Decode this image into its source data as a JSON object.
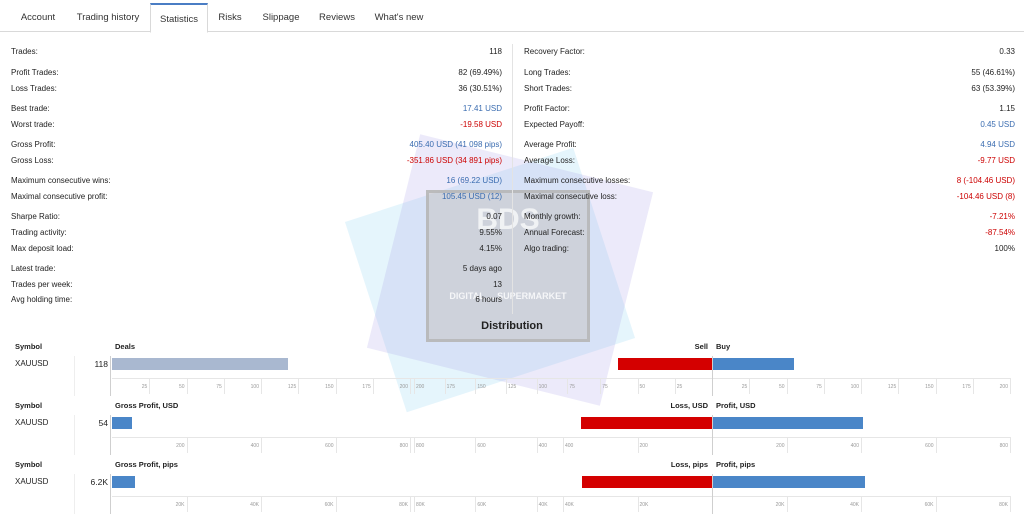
{
  "tabs": [
    {
      "label": "Account",
      "active": false
    },
    {
      "label": "Trading history",
      "active": false
    },
    {
      "label": "Statistics",
      "active": true
    },
    {
      "label": "Risks",
      "active": false
    },
    {
      "label": "Slippage",
      "active": false
    },
    {
      "label": "Reviews",
      "active": false
    },
    {
      "label": "What's new",
      "active": false
    }
  ],
  "left_stats": [
    {
      "label": "Trades:",
      "value": "118",
      "style": ""
    },
    {
      "label": "Profit Trades:",
      "value": "82 (69.49%)",
      "style": ""
    },
    {
      "label": "Loss Trades:",
      "value": "36 (30.51%)",
      "style": ""
    },
    {
      "label": "Best trade:",
      "value": "17.41 USD",
      "style": "blue"
    },
    {
      "label": "Worst trade:",
      "value": "-19.58 USD",
      "style": "red"
    },
    {
      "label": "Gross Profit:",
      "value": "405.40 USD (41 098 pips)",
      "style": "blue"
    },
    {
      "label": "Gross Loss:",
      "value": "-351.86 USD (34 891 pips)",
      "style": "red"
    },
    {
      "label": "Maximum consecutive wins:",
      "value": "16 (69.22 USD)",
      "style": "blue"
    },
    {
      "label": "Maximal consecutive profit:",
      "value": "105.45 USD (12)",
      "style": "blue"
    },
    {
      "label": "Sharpe Ratio:",
      "value": "0.07",
      "style": ""
    },
    {
      "label": "Trading activity:",
      "value": "9.55%",
      "style": ""
    },
    {
      "label": "Max deposit load:",
      "value": "4.15%",
      "style": ""
    },
    {
      "label": "Latest trade:",
      "value": "5 days ago",
      "style": ""
    },
    {
      "label": "Trades per week:",
      "value": "13",
      "style": ""
    },
    {
      "label": "Avg holding time:",
      "value": "6 hours",
      "style": ""
    }
  ],
  "right_stats": [
    {
      "label": "Recovery Factor:",
      "value": "0.33",
      "style": ""
    },
    {
      "label": "Long Trades:",
      "value": "55 (46.61%)",
      "style": ""
    },
    {
      "label": "Short Trades:",
      "value": "63 (53.39%)",
      "style": ""
    },
    {
      "label": "Profit Factor:",
      "value": "1.15",
      "style": ""
    },
    {
      "label": "Expected Payoff:",
      "value": "0.45 USD",
      "style": "blue"
    },
    {
      "label": "Average Profit:",
      "value": "4.94 USD",
      "style": "blue"
    },
    {
      "label": "Average Loss:",
      "value": "-9.77 USD",
      "style": "red"
    },
    {
      "label": "Maximum consecutive losses:",
      "value": "8 (-104.46 USD)",
      "style": "red"
    },
    {
      "label": "Maximal consecutive loss:",
      "value": "-104.46 USD (8)",
      "style": "red"
    },
    {
      "label": "Monthly growth:",
      "value": "-7.21%",
      "style": "red"
    },
    {
      "label": "Annual Forecast:",
      "value": "-87.54%",
      "style": "red"
    },
    {
      "label": "Algo trading:",
      "value": "100%",
      "style": ""
    }
  ],
  "watermark": {
    "logo": "BDS",
    "subtitle": "DIGITAL ... SUPERMARKET"
  },
  "distribution": {
    "title": "Distribution",
    "symbol_header": "Symbol",
    "rows": [
      {
        "symbol": "XAUUSD",
        "left_header": "Deals",
        "left_value": "118",
        "left_amount": 118,
        "left_max": 200,
        "left_ticks": [
          "25",
          "50",
          "75",
          "100",
          "125",
          "150",
          "175",
          "200"
        ],
        "mid_ticks": [
          "200",
          "175",
          "150",
          "125",
          "100",
          "75"
        ],
        "right_neg_header": "Sell",
        "right_pos_header": "Buy",
        "neg_amount": 63,
        "pos_amount": 55,
        "right_max": 200,
        "right_neg_ticks": [
          "75",
          "50",
          "25"
        ],
        "right_pos_ticks": [
          "25",
          "50",
          "75",
          "100",
          "125",
          "150",
          "175",
          "200"
        ]
      },
      {
        "symbol": "XAUUSD",
        "left_header": "Gross Profit, USD",
        "left_value": "54",
        "left_amount": 54,
        "left_max": 800,
        "left_ticks": [
          "200",
          "400",
          "600",
          "800"
        ],
        "mid_ticks": [
          "800",
          "600",
          "400"
        ],
        "right_neg_header": "Loss, USD",
        "right_pos_header": "Profit, USD",
        "neg_amount": 352,
        "pos_amount": 405,
        "right_max": 800,
        "right_neg_ticks": [
          "400",
          "200"
        ],
        "right_pos_ticks": [
          "200",
          "400",
          "600",
          "800"
        ]
      },
      {
        "symbol": "XAUUSD",
        "left_header": "Gross Profit, pips",
        "left_value": "6.2K",
        "left_amount": 6200,
        "left_max": 80000,
        "left_ticks": [
          "20K",
          "40K",
          "60K",
          "80K"
        ],
        "mid_ticks": [
          "80K",
          "60K",
          "40K"
        ],
        "right_neg_header": "Loss, pips",
        "right_pos_header": "Profit, pips",
        "neg_amount": 34891,
        "pos_amount": 41098,
        "right_max": 80000,
        "right_neg_ticks": [
          "40K",
          "20K"
        ],
        "right_pos_ticks": [
          "20K",
          "40K",
          "60K",
          "80K"
        ]
      }
    ]
  },
  "colors": {
    "neutral_bar": "#a9b8d0",
    "loss": "#d40000",
    "profit": "#4a86c8",
    "accent": "#4a7dc4"
  }
}
